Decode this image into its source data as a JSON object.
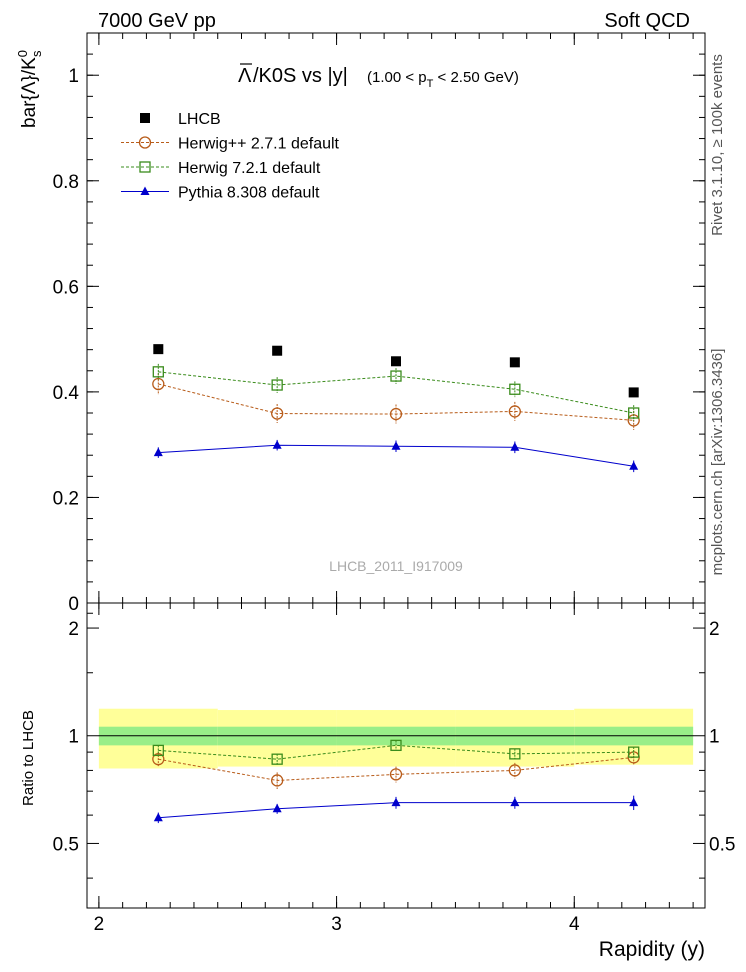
{
  "header": {
    "left": "7000 GeV pp",
    "right": "Soft QCD"
  },
  "side_labels": {
    "rivet": "Rivet 3.1.10, ≥ 100k events",
    "mcplots": "mcplots.cern.ch [arXiv:1306.3436]"
  },
  "chart_data": [
    {
      "type": "scatter",
      "title_main": "Λ/K0S vs |y|",
      "title_overline": "Λ",
      "title_rest": "/K0S vs |y|",
      "title_range": "(1.00 < p_T < 2.50 GeV)",
      "ylabel": "bar{Λ}/K^0_s",
      "watermark": "LHCB_2011_I917009",
      "xlim": [
        1.95,
        4.55
      ],
      "ylim": [
        0,
        1.08
      ],
      "yticks": [
        0,
        0.2,
        0.4,
        0.6,
        0.8,
        1
      ],
      "ytick_labels": [
        "0",
        "0.2",
        "0.4",
        "0.6",
        "0.8",
        "1"
      ],
      "legend_placement": "top-left",
      "x": [
        2.25,
        2.75,
        3.25,
        3.75,
        4.25
      ],
      "series": [
        {
          "name": "LHCB",
          "color": "#000000",
          "marker": "square-filled",
          "line": "none",
          "values": [
            0.481,
            0.478,
            0.458,
            0.456,
            0.399
          ],
          "errors": [
            0.004,
            0.004,
            0.004,
            0.004,
            0.004
          ]
        },
        {
          "name": "Herwig++ 2.7.1 default",
          "color": "#b85c1a",
          "marker": "circle-open",
          "line": "dashed",
          "values": [
            0.415,
            0.359,
            0.358,
            0.363,
            0.346
          ],
          "errors": [
            0.02,
            0.018,
            0.018,
            0.018,
            0.018
          ]
        },
        {
          "name": "Herwig 7.2.1 default",
          "color": "#3a8c1c",
          "marker": "square-open",
          "line": "dashed",
          "values": [
            0.438,
            0.413,
            0.43,
            0.405,
            0.36
          ],
          "errors": [
            0.015,
            0.015,
            0.015,
            0.015,
            0.015
          ]
        },
        {
          "name": "Pythia 8.308 default",
          "color": "#0000cc",
          "marker": "triangle-filled",
          "line": "solid",
          "values": [
            0.285,
            0.299,
            0.297,
            0.295,
            0.259
          ],
          "errors": [
            0.01,
            0.01,
            0.011,
            0.011,
            0.011
          ]
        }
      ]
    },
    {
      "type": "scatter",
      "ylabel": "Ratio to LHCB",
      "xlabel": "Rapidity (y)",
      "xlim": [
        1.95,
        4.55
      ],
      "ylim": [
        0.33,
        2.35
      ],
      "xticks": [
        2,
        3,
        4
      ],
      "xtick_labels": [
        "2",
        "3",
        "4"
      ],
      "yticks": [
        0.5,
        1,
        2
      ],
      "ytick_labels": [
        "0.5",
        "1",
        "2"
      ],
      "bands": {
        "x_edges": [
          2.0,
          2.5,
          3.0,
          3.5,
          4.0,
          4.5
        ],
        "yellow": [
          [
            0.81,
            1.19
          ],
          [
            0.82,
            1.18
          ],
          [
            0.82,
            1.18
          ],
          [
            0.82,
            1.18
          ],
          [
            0.83,
            1.19
          ]
        ],
        "green": [
          [
            0.94,
            1.06
          ],
          [
            0.94,
            1.06
          ],
          [
            0.94,
            1.06
          ],
          [
            0.94,
            1.06
          ],
          [
            0.94,
            1.06
          ]
        ]
      },
      "x": [
        2.25,
        2.75,
        3.25,
        3.75,
        4.25
      ],
      "series": [
        {
          "name": "Herwig++ 2.7.1 default",
          "color": "#b85c1a",
          "marker": "circle-open",
          "line": "dashed",
          "values": [
            0.86,
            0.75,
            0.78,
            0.8,
            0.87
          ],
          "errors": [
            0.04,
            0.04,
            0.04,
            0.04,
            0.04
          ]
        },
        {
          "name": "Herwig 7.2.1 default",
          "color": "#3a8c1c",
          "marker": "square-open",
          "line": "dashed",
          "values": [
            0.91,
            0.86,
            0.94,
            0.89,
            0.9
          ],
          "errors": [
            0.03,
            0.03,
            0.03,
            0.03,
            0.03
          ]
        },
        {
          "name": "Pythia 8.308 default",
          "color": "#0000cc",
          "marker": "triangle-filled",
          "line": "solid",
          "values": [
            0.59,
            0.625,
            0.65,
            0.65,
            0.65
          ],
          "errors": [
            0.02,
            0.02,
            0.025,
            0.025,
            0.03
          ]
        }
      ]
    }
  ]
}
